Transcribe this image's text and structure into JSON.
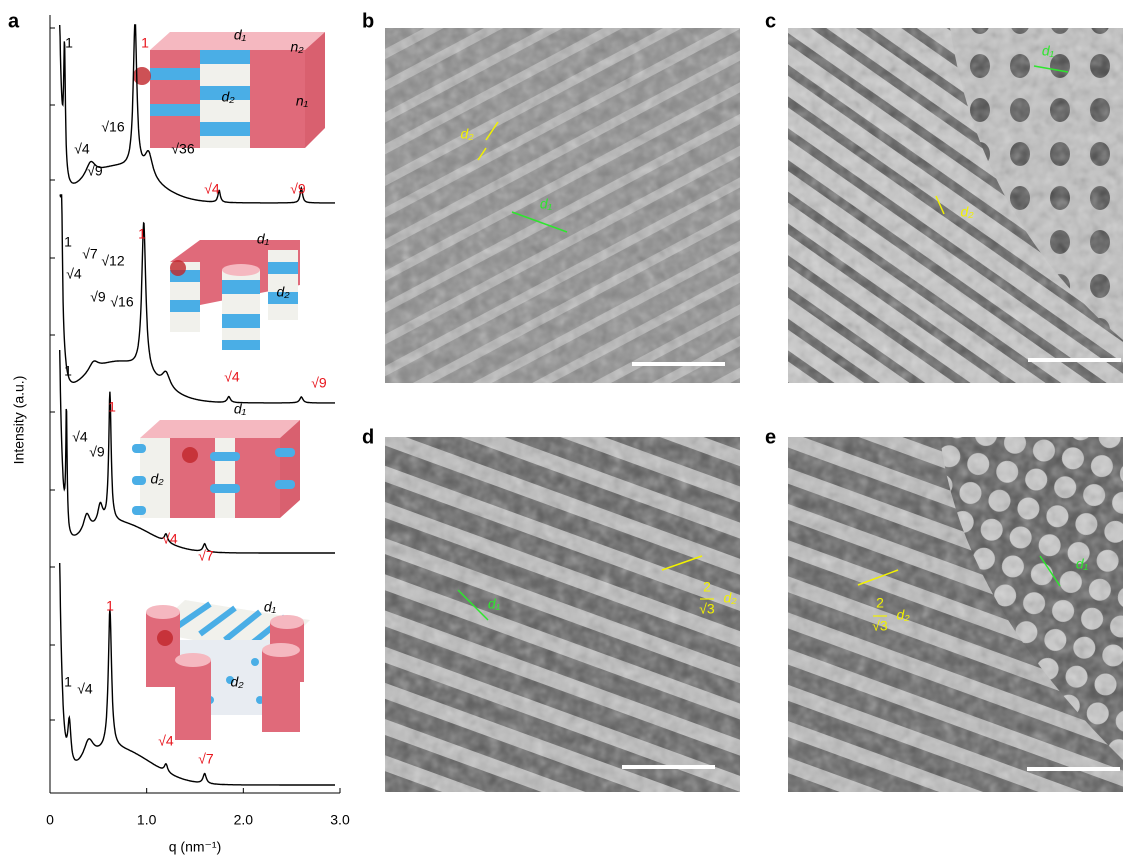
{
  "figure": {
    "panel_labels": [
      "a",
      "b",
      "c",
      "d",
      "e"
    ],
    "plot": {
      "x_label": "q (nm⁻¹)",
      "y_label": "Intensity (a.u.)",
      "xlim": [
        0,
        3
      ],
      "xticks": [
        0,
        {
          "value": 1,
          "label": "1.0"
        },
        {
          "value": 2,
          "label": "2.0"
        },
        {
          "value": 3,
          "label": "3.0"
        }
      ],
      "curves": [
        {
          "peaks": [
            {
              "label": "1",
              "color": "#000000"
            },
            {
              "label": "1",
              "color": "#e8141c"
            },
            {
              "label": "√4",
              "color": "#000000"
            },
            {
              "label": "√9",
              "color": "#000000"
            },
            {
              "label": "√16",
              "color": "#000000"
            },
            {
              "label": "√36",
              "color": "#000000"
            },
            {
              "label": "√4",
              "color": "#e8141c"
            },
            {
              "label": "√9",
              "color": "#e8141c"
            }
          ],
          "schematic": [
            "d₁",
            "n₂",
            "d₂",
            "n₁"
          ]
        },
        {
          "peaks": [
            {
              "label": "1",
              "color": "#000000"
            },
            {
              "label": "1",
              "color": "#e8141c"
            },
            {
              "label": "√4",
              "color": "#000000"
            },
            {
              "label": "√7",
              "color": "#000000"
            },
            {
              "label": "√12",
              "color": "#000000"
            },
            {
              "label": "√9",
              "color": "#000000"
            },
            {
              "label": "√16",
              "color": "#000000"
            },
            {
              "label": "√4",
              "color": "#e8141c"
            },
            {
              "label": "√9",
              "color": "#e8141c"
            }
          ],
          "schematic": [
            "d₁",
            "d₂"
          ]
        },
        {
          "peaks": [
            {
              "label": "1",
              "color": "#000000"
            },
            {
              "label": "1",
              "color": "#e8141c"
            },
            {
              "label": "√4",
              "color": "#000000"
            },
            {
              "label": "√9",
              "color": "#000000"
            },
            {
              "label": "√4",
              "color": "#e8141c"
            },
            {
              "label": "√7",
              "color": "#e8141c"
            }
          ],
          "schematic": [
            "d₁",
            "d₂"
          ]
        },
        {
          "peaks": [
            {
              "label": "1",
              "color": "#000000"
            },
            {
              "label": "1",
              "color": "#e8141c"
            },
            {
              "label": "√4",
              "color": "#000000"
            },
            {
              "label": "√4",
              "color": "#e8141c"
            },
            {
              "label": "√7",
              "color": "#e8141c"
            }
          ],
          "schematic": [
            "d₁",
            "d₂"
          ]
        }
      ]
    },
    "images": [
      {
        "annotations": [
          {
            "text": "d₂",
            "color": "#f2f200"
          },
          {
            "text": "d₁",
            "color": "#2ee62e"
          }
        ]
      },
      {
        "annotations": [
          {
            "text": "d₁",
            "color": "#2ee62e"
          },
          {
            "text": "d₂",
            "color": "#f2f200"
          }
        ]
      },
      {
        "annotations": [
          {
            "text": "d₁",
            "color": "#2ee62e"
          },
          {
            "text": "2",
            "color": "#f2f200"
          },
          {
            "text": "√3",
            "color": "#f2f200"
          },
          {
            "text": "d₂",
            "color": "#f2f200"
          }
        ]
      },
      {
        "annotations": [
          {
            "text": "d₁",
            "color": "#2ee62e"
          },
          {
            "text": "2",
            "color": "#f2f200"
          },
          {
            "text": "√3",
            "color": "#f2f200"
          },
          {
            "text": "d₂",
            "color": "#f2f200"
          }
        ]
      }
    ]
  }
}
